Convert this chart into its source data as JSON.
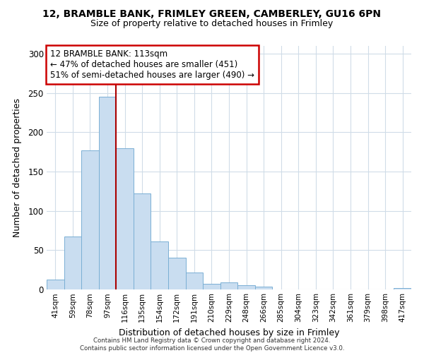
{
  "title1": "12, BRAMBLE BANK, FRIMLEY GREEN, CAMBERLEY, GU16 6PN",
  "title2": "Size of property relative to detached houses in Frimley",
  "xlabel": "Distribution of detached houses by size in Frimley",
  "ylabel": "Number of detached properties",
  "categories": [
    "41sqm",
    "59sqm",
    "78sqm",
    "97sqm",
    "116sqm",
    "135sqm",
    "154sqm",
    "172sqm",
    "191sqm",
    "210sqm",
    "229sqm",
    "248sqm",
    "266sqm",
    "285sqm",
    "304sqm",
    "323sqm",
    "342sqm",
    "361sqm",
    "379sqm",
    "398sqm",
    "417sqm"
  ],
  "values": [
    13,
    67,
    177,
    245,
    180,
    122,
    61,
    40,
    22,
    7,
    9,
    5,
    4,
    0,
    0,
    0,
    0,
    0,
    0,
    0,
    2
  ],
  "bar_color": "#c9ddf0",
  "bar_edge_color": "#7aafd4",
  "vline_color": "#aa0000",
  "vline_x_index": 3.5,
  "annotation_text": "12 BRAMBLE BANK: 113sqm\n← 47% of detached houses are smaller (451)\n51% of semi-detached houses are larger (490) →",
  "annotation_box_color": "#ffffff",
  "annotation_box_edge": "#cc0000",
  "ylim": [
    0,
    310
  ],
  "yticks": [
    0,
    50,
    100,
    150,
    200,
    250,
    300
  ],
  "footnote": "Contains HM Land Registry data © Crown copyright and database right 2024.\nContains public sector information licensed under the Open Government Licence v3.0.",
  "bg_color": "#ffffff",
  "grid_color": "#d0dce8"
}
